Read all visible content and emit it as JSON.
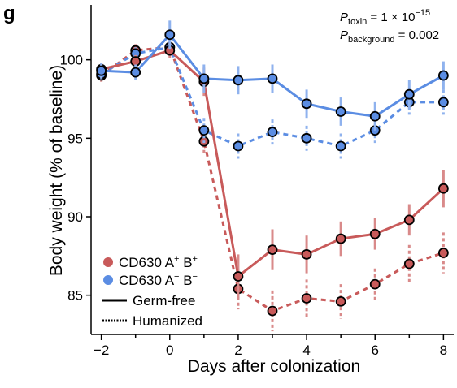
{
  "panel_label": "g",
  "colors": {
    "red": "#c85a5a",
    "red_light": "#d98a8a",
    "blue": "#5b8de3",
    "blue_light": "#8fb2ee",
    "marker_edge": "#000000"
  },
  "annotation": {
    "p_toxin_base": "P",
    "p_toxin_sub": "toxin",
    "p_toxin_value": " = 1 × 10",
    "p_toxin_exp": "−15",
    "p_background_base": "P",
    "p_background_sub": "background",
    "p_background_value": " = 0.002"
  },
  "legend": {
    "red_label_prefix": "CD630 A",
    "red_label_sup1": "+",
    "red_label_mid": " B",
    "red_label_sup2": "+",
    "blue_label_prefix": "CD630 A",
    "blue_label_sup1": "−",
    "blue_label_mid": " B",
    "blue_label_sup2": "−",
    "solid_label": "Germ-free",
    "dashed_label": "Humanized"
  },
  "chart_data": {
    "type": "line",
    "xlabel": "Days after colonization",
    "ylabel": "Body weight (% of baseline)",
    "xlim": [
      -2.3,
      8.3
    ],
    "ylim": [
      82.5,
      103.5
    ],
    "xticks": [
      -2,
      0,
      2,
      4,
      6,
      8
    ],
    "xtick_labels": [
      "−2",
      "0",
      "2",
      "4",
      "6",
      "8"
    ],
    "yticks": [
      85,
      90,
      95,
      100
    ],
    "ytick_labels": [
      "85",
      "90",
      "95",
      "100"
    ],
    "grid": false,
    "legend_position": "bottom-left",
    "series": [
      {
        "name": "CD630 A+ B+ Germ-free",
        "color": "red",
        "style": "solid",
        "x": [
          -2,
          -1,
          0,
          1,
          2,
          3,
          4,
          5,
          6,
          7,
          8
        ],
        "y": [
          99.4,
          99.9,
          100.6,
          98.6,
          86.2,
          87.9,
          87.6,
          88.6,
          88.9,
          89.8,
          91.8
        ],
        "err": [
          0.4,
          0.4,
          0.5,
          0.9,
          1.4,
          1.3,
          1.2,
          1.1,
          1.0,
          1.0,
          1.2
        ]
      },
      {
        "name": "CD630 A+ B+ Humanized",
        "color": "red",
        "style": "dashed",
        "x": [
          -2,
          -1,
          0,
          1,
          2,
          3,
          4,
          5,
          6,
          7,
          8
        ],
        "y": [
          99.0,
          100.6,
          100.8,
          94.8,
          85.4,
          84.0,
          84.8,
          84.6,
          85.7,
          87.0,
          87.7
        ],
        "err": [
          0.4,
          0.4,
          0.5,
          0.9,
          1.3,
          1.3,
          1.2,
          1.1,
          1.0,
          1.2,
          1.3
        ]
      },
      {
        "name": "CD630 A− B− Germ-free",
        "color": "blue",
        "style": "solid",
        "x": [
          -2,
          -1,
          0,
          1,
          2,
          3,
          4,
          5,
          6,
          7,
          8
        ],
        "y": [
          99.3,
          99.2,
          101.6,
          98.8,
          98.7,
          98.8,
          97.2,
          96.7,
          96.4,
          97.8,
          99.0
        ],
        "err": [
          0.5,
          0.5,
          0.9,
          0.9,
          0.9,
          0.9,
          0.9,
          0.9,
          0.9,
          0.9,
          0.9
        ]
      },
      {
        "name": "CD630 A− B− Humanized",
        "color": "blue",
        "style": "dashed",
        "x": [
          -2,
          -1,
          0,
          1,
          2,
          3,
          4,
          5,
          6,
          7,
          8
        ],
        "y": [
          99.1,
          100.4,
          100.8,
          95.5,
          94.5,
          95.4,
          95.0,
          94.5,
          95.5,
          97.3,
          97.3
        ],
        "err": [
          0.4,
          0.4,
          0.5,
          0.8,
          0.8,
          0.8,
          0.8,
          0.8,
          0.8,
          0.8,
          0.8
        ]
      }
    ]
  }
}
